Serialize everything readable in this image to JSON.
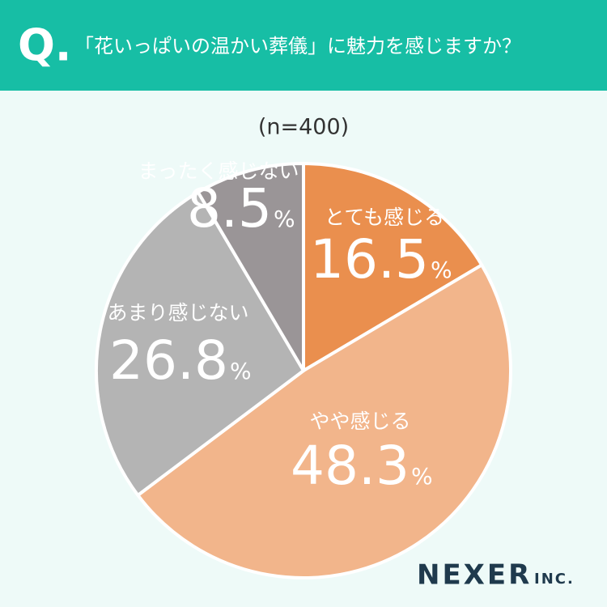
{
  "header": {
    "mark": "Q.",
    "question": "「花いっぱいの温かい葬儀」に魅力を感じますか？"
  },
  "chart_data": {
    "type": "pie",
    "subtitle": "(n=400)",
    "categories": [
      "とても感じる",
      "やや感じる",
      "あまり感じない",
      "まったく感じない"
    ],
    "values": [
      16.5,
      48.3,
      26.8,
      8.5
    ],
    "unit": "%",
    "colors": [
      "#ea8f4e",
      "#f2b58b",
      "#b4b4b4",
      "#9a9597"
    ]
  },
  "logo": {
    "name": "NEXER",
    "suffix": "INC."
  }
}
